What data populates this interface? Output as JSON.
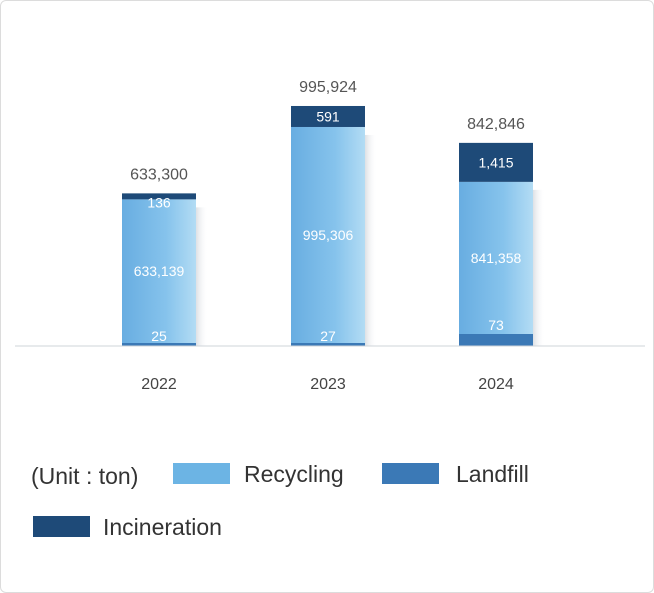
{
  "chart_data": {
    "type": "bar",
    "stacked": true,
    "categories": [
      "2022",
      "2023",
      "2024"
    ],
    "totals": [
      633300,
      995924,
      842846
    ],
    "total_labels": [
      "633,300",
      "995,924",
      "842,846"
    ],
    "series": [
      {
        "name": "Landfill",
        "values": [
          25,
          27,
          73
        ],
        "labels": [
          "25",
          "27",
          "73"
        ],
        "color": "#3b79b6"
      },
      {
        "name": "Recycling",
        "values": [
          633139,
          995306,
          841358
        ],
        "labels": [
          "633,139",
          "995,306",
          "841,358"
        ],
        "color": "#6cb4e4"
      },
      {
        "name": "Incineration",
        "values": [
          136,
          591,
          1415
        ],
        "labels": [
          "136",
          "591",
          "1,415"
        ],
        "color": "#1e4a78"
      }
    ],
    "unit_label": "(Unit : ton)",
    "legend": {
      "placement": "bottom",
      "order": [
        "Recycling",
        "Landfill",
        "Incineration"
      ]
    },
    "ylim": [
      0,
      1000000
    ],
    "grid": false
  }
}
